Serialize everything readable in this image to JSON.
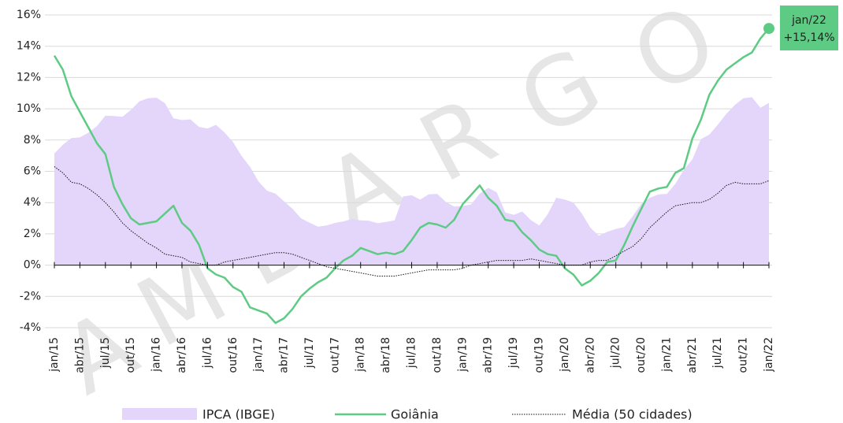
{
  "chart_data": {
    "type": "line",
    "categories": [
      "jan/15",
      null,
      null,
      "abr/15",
      null,
      null,
      "jul/15",
      null,
      null,
      "out/15",
      null,
      null,
      "jan/16",
      null,
      null,
      "abr/16",
      null,
      null,
      "jul/16",
      null,
      null,
      "out/16",
      null,
      null,
      "jan/17",
      null,
      null,
      "abr/17",
      null,
      null,
      "jul/17",
      null,
      null,
      "out/17",
      null,
      null,
      "jan/18",
      null,
      null,
      "abr/18",
      null,
      null,
      "jul/18",
      null,
      null,
      "out/18",
      null,
      null,
      "jan/19",
      null,
      null,
      "abr/19",
      null,
      null,
      "jul/19",
      null,
      null,
      "out/19",
      null,
      null,
      "jan/20",
      null,
      null,
      "abr/20",
      null,
      null,
      "jul/20",
      null,
      null,
      "out/20",
      null,
      null,
      "jan/21",
      null,
      null,
      "abr/21",
      null,
      null,
      "jul/21",
      null,
      null,
      "out/21",
      null,
      null,
      "jan/22"
    ],
    "series": [
      {
        "name": "IPCA (IBGE)",
        "kind": "area",
        "color": "#e4d5fb",
        "values": [
          7.14,
          7.7,
          8.13,
          8.17,
          8.47,
          8.89,
          9.56,
          9.53,
          9.49,
          9.93,
          10.48,
          10.67,
          10.71,
          10.36,
          9.39,
          9.28,
          9.32,
          8.84,
          8.74,
          8.97,
          8.48,
          7.87,
          6.99,
          6.29,
          5.35,
          4.76,
          4.57,
          4.08,
          3.6,
          3.0,
          2.71,
          2.46,
          2.54,
          2.7,
          2.8,
          2.95,
          2.86,
          2.84,
          2.68,
          2.76,
          2.86,
          4.39,
          4.48,
          4.19,
          4.53,
          4.56,
          4.05,
          3.75,
          3.78,
          3.89,
          4.58,
          4.94,
          4.66,
          3.37,
          3.22,
          3.43,
          2.89,
          2.54,
          3.27,
          4.31,
          4.19,
          4.01,
          3.3,
          2.4,
          1.88,
          2.13,
          2.31,
          2.44,
          3.14,
          3.92,
          4.31,
          4.52,
          4.56,
          5.2,
          6.1,
          6.76,
          8.06,
          8.35,
          8.99,
          9.68,
          10.25,
          10.67,
          10.74,
          10.06,
          10.38
        ]
      },
      {
        "name": "Goiânia",
        "kind": "solid",
        "color": "#5dcb84",
        "values": [
          13.4,
          12.5,
          10.8,
          9.8,
          8.8,
          7.8,
          7.1,
          5.0,
          3.9,
          3.0,
          2.6,
          2.7,
          2.8,
          3.3,
          3.8,
          2.7,
          2.2,
          1.3,
          -0.2,
          -0.6,
          -0.8,
          -1.4,
          -1.7,
          -2.7,
          -2.9,
          -3.1,
          -3.7,
          -3.4,
          -2.8,
          -2.0,
          -1.5,
          -1.1,
          -0.8,
          -0.2,
          0.3,
          0.6,
          1.1,
          0.9,
          0.7,
          0.8,
          0.7,
          0.9,
          1.6,
          2.4,
          2.7,
          2.6,
          2.4,
          2.9,
          3.9,
          4.5,
          5.1,
          4.3,
          3.8,
          2.9,
          2.8,
          2.1,
          1.6,
          1.0,
          0.7,
          0.6,
          -0.2,
          -0.6,
          -1.3,
          -1.0,
          -0.5,
          0.2,
          0.3,
          1.3,
          2.5,
          3.6,
          4.7,
          4.9,
          5.0,
          5.9,
          6.2,
          8.1,
          9.3,
          10.9,
          11.8,
          12.5,
          12.9,
          13.3,
          13.6,
          14.5,
          15.14
        ]
      },
      {
        "name": "Média (50 cidades)",
        "kind": "dotted",
        "color": "#111111",
        "values": [
          6.3,
          5.9,
          5.3,
          5.2,
          4.9,
          4.5,
          4.0,
          3.4,
          2.7,
          2.2,
          1.8,
          1.4,
          1.1,
          0.7,
          0.6,
          0.5,
          0.2,
          0.1,
          0.0,
          0.0,
          0.2,
          0.3,
          0.4,
          0.5,
          0.6,
          0.7,
          0.8,
          0.8,
          0.7,
          0.5,
          0.3,
          0.1,
          -0.1,
          -0.2,
          -0.3,
          -0.4,
          -0.5,
          -0.6,
          -0.7,
          -0.7,
          -0.7,
          -0.6,
          -0.5,
          -0.4,
          -0.3,
          -0.3,
          -0.3,
          -0.3,
          -0.2,
          0.0,
          0.1,
          0.2,
          0.3,
          0.3,
          0.3,
          0.3,
          0.4,
          0.3,
          0.2,
          0.1,
          0.0,
          0.0,
          0.0,
          0.2,
          0.3,
          0.3,
          0.6,
          0.9,
          1.2,
          1.7,
          2.4,
          2.9,
          3.4,
          3.8,
          3.9,
          4.0,
          4.0,
          4.2,
          4.6,
          5.1,
          5.3,
          5.2,
          5.2,
          5.2,
          5.4
        ]
      }
    ],
    "ylim": [
      -4,
      16
    ],
    "yticks": [
      {
        "value": -4,
        "label": "-4%"
      },
      {
        "value": -2,
        "label": "-2%"
      },
      {
        "value": 0,
        "label": "0%"
      },
      {
        "value": 2,
        "label": "2%"
      },
      {
        "value": 4,
        "label": "4%"
      },
      {
        "value": 6,
        "label": "6%"
      },
      {
        "value": 8,
        "label": "8%"
      },
      {
        "value": 10,
        "label": "10%"
      },
      {
        "value": 12,
        "label": "12%"
      },
      {
        "value": 14,
        "label": "14%"
      },
      {
        "value": 16,
        "label": "16%"
      }
    ],
    "grid": true,
    "annotation": {
      "x_label": "jan/22",
      "value_label": "+15,14%",
      "color": "#5dcb84"
    },
    "watermark": [
      "A",
      "M",
      "B",
      "A",
      "R",
      "G",
      "O"
    ]
  }
}
